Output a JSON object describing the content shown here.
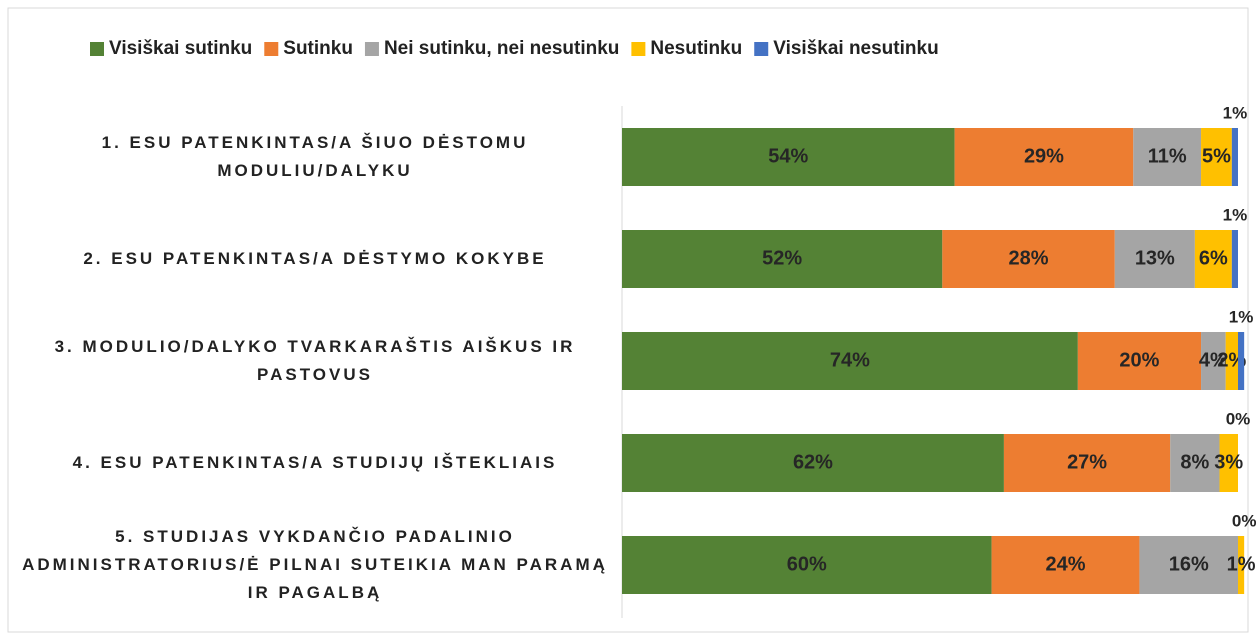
{
  "chart_data": {
    "type": "stacked-barh",
    "categories": [
      "1. ESU PATENKINTAS/A ŠIUO DĖSTOMU MODULIU/DALYKU",
      "2. ESU PATENKINTAS/A DĖSTYMO KOKYBE",
      "3. MODULIO/DALYKO TVARKARAŠTIS AIŠKUS IR PASTOVUS",
      "4. ESU PATENKINTAS/A STUDIJŲ IŠTEKLIAIS",
      "5. STUDIJAS VYKDANČIO PADALINIO ADMINISTRATORIUS/Ė PILNAI SUTEIKIA MAN PARAMĄ IR PAGALBĄ"
    ],
    "series": [
      {
        "name": "Visiškai sutinku",
        "color": "#548235",
        "values": [
          54,
          52,
          74,
          62,
          60
        ],
        "value_labels": [
          "54%",
          "52%",
          "74%",
          "62%",
          "60%"
        ]
      },
      {
        "name": "Sutinku",
        "color": "#ed7d31",
        "values": [
          29,
          28,
          20,
          27,
          24
        ],
        "value_labels": [
          "29%",
          "28%",
          "20%",
          "27%",
          "24%"
        ]
      },
      {
        "name": "Nei sutinku, nei nesutinku",
        "color": "#a5a5a5",
        "values": [
          11,
          13,
          4,
          8,
          16
        ],
        "value_labels": [
          "11%",
          "13%",
          "4%",
          "8%",
          "16%"
        ]
      },
      {
        "name": "Nesutinku",
        "color": "#ffc000",
        "values": [
          5,
          6,
          2,
          3,
          1
        ],
        "value_labels": [
          "5%",
          "6%",
          "2%",
          "3%",
          "1%"
        ]
      },
      {
        "name": "Visiškai nesutinku",
        "color": "#4472c4",
        "values": [
          1,
          1,
          1,
          0,
          0
        ],
        "value_labels": [
          "1%",
          "1%",
          "1%",
          "0%",
          "0%"
        ]
      }
    ],
    "xlim": [
      0,
      100
    ],
    "legend": "top"
  }
}
